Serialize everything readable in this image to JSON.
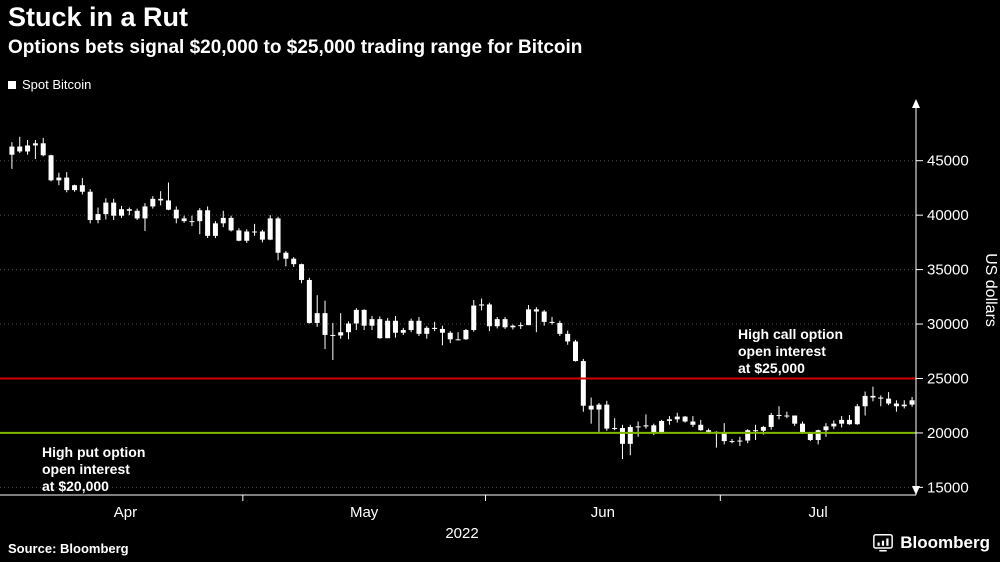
{
  "footer": {
    "source": "Source: Bloomberg",
    "brand": "Bloomberg"
  },
  "colors": {
    "background": "#000000",
    "text": "#ffffff",
    "call_line": "#d40000",
    "put_line": "#7fb800",
    "grid": "#4f4f4f"
  },
  "chart_data": {
    "type": "candlestick",
    "title": "Stuck in a Rut",
    "subtitle": "Options bets signal $20,000 to $25,000 trading range for Bitcoin",
    "series_name": "Spot Bitcoin",
    "xlabel": "2022",
    "ylabel": "US dollars",
    "ylim": [
      14300,
      50300
    ],
    "yticks": [
      15000,
      20000,
      25000,
      30000,
      35000,
      40000,
      45000
    ],
    "grid_color": "#4f4f4f",
    "candle_color": "#ffffff",
    "months": [
      {
        "label": "Apr",
        "days": 30
      },
      {
        "label": "May",
        "days": 31
      },
      {
        "label": "Jun",
        "days": 30
      },
      {
        "label": "Jul",
        "days": 25
      }
    ],
    "hlines": [
      {
        "value": 25000,
        "color": "#d40000",
        "label": "High call option\nopen interest\nat $25,000"
      },
      {
        "value": 20000,
        "color": "#7fb800",
        "label": "High put option\nopen interest\nat $20,000"
      }
    ],
    "candles": [
      [
        45550,
        46700,
        44250,
        46300
      ],
      [
        46300,
        47200,
        45700,
        45850
      ],
      [
        45850,
        46900,
        45550,
        46400
      ],
      [
        46400,
        46900,
        45150,
        46600
      ],
      [
        46600,
        47100,
        45400,
        45500
      ],
      [
        45500,
        45550,
        43100,
        43200
      ],
      [
        43200,
        43900,
        42750,
        43450
      ],
      [
        43450,
        43950,
        42100,
        42300
      ],
      [
        42300,
        42800,
        42150,
        42750
      ],
      [
        42750,
        43400,
        41900,
        42150
      ],
      [
        42150,
        42400,
        39250,
        39550
      ],
      [
        39550,
        40700,
        39250,
        40100
      ],
      [
        40100,
        41550,
        39600,
        41150
      ],
      [
        41150,
        41500,
        39550,
        39950
      ],
      [
        39950,
        40850,
        39750,
        40550
      ],
      [
        40550,
        40700,
        40000,
        40400
      ],
      [
        40400,
        40600,
        39550,
        39700
      ],
      [
        39700,
        41100,
        38550,
        40800
      ],
      [
        40800,
        41750,
        40600,
        41500
      ],
      [
        41500,
        42200,
        40900,
        41350
      ],
      [
        41350,
        43000,
        40450,
        40500
      ],
      [
        40500,
        40800,
        39250,
        39700
      ],
      [
        39700,
        39950,
        39300,
        39450
      ],
      [
        39450,
        39950,
        39000,
        39450
      ],
      [
        39450,
        40650,
        38250,
        40450
      ],
      [
        40450,
        40800,
        37900,
        38100
      ],
      [
        38100,
        39450,
        37900,
        39250
      ],
      [
        39250,
        40400,
        38900,
        39750
      ],
      [
        39750,
        39950,
        38500,
        38600
      ],
      [
        38600,
        38800,
        37600,
        37650
      ],
      [
        37650,
        38700,
        37450,
        38500
      ],
      [
        38500,
        39200,
        38100,
        38500
      ],
      [
        38500,
        38650,
        37500,
        37750
      ],
      [
        37750,
        40000,
        37700,
        39700
      ],
      [
        39700,
        39850,
        35850,
        36550
      ],
      [
        36550,
        36700,
        35300,
        36000
      ],
      [
        36000,
        36150,
        35250,
        35500
      ],
      [
        35500,
        35550,
        33750,
        34050
      ],
      [
        34050,
        34250,
        30050,
        30100
      ],
      [
        30100,
        32650,
        29750,
        31000
      ],
      [
        31000,
        32150,
        27700,
        29000
      ],
      [
        29000,
        30100,
        26700,
        28950
      ],
      [
        28950,
        31000,
        28650,
        29250
      ],
      [
        29250,
        30250,
        28600,
        30050
      ],
      [
        30050,
        31450,
        29450,
        31300
      ],
      [
        31300,
        31350,
        29450,
        29850
      ],
      [
        29850,
        30750,
        29450,
        30450
      ],
      [
        30450,
        30700,
        28650,
        28700
      ],
      [
        28700,
        30550,
        28700,
        30300
      ],
      [
        30300,
        30750,
        28750,
        29200
      ],
      [
        29200,
        29650,
        29000,
        29450
      ],
      [
        29450,
        30500,
        29250,
        30300
      ],
      [
        30300,
        30650,
        28900,
        29100
      ],
      [
        29100,
        29800,
        28650,
        29650
      ],
      [
        29650,
        30200,
        29350,
        29550
      ],
      [
        29550,
        29850,
        28050,
        29200
      ],
      [
        29200,
        29350,
        28250,
        28600
      ],
      [
        28600,
        29250,
        28500,
        28600
      ],
      [
        28600,
        29550,
        28550,
        29450
      ],
      [
        29450,
        32200,
        29300,
        31700
      ],
      [
        31700,
        32350,
        31250,
        31800
      ],
      [
        31800,
        31950,
        29350,
        29800
      ],
      [
        29800,
        30650,
        29600,
        30450
      ],
      [
        30450,
        30650,
        29550,
        29700
      ],
      [
        29700,
        29950,
        29500,
        29850
      ],
      [
        29850,
        30150,
        29550,
        29900
      ],
      [
        29900,
        31750,
        29900,
        31350
      ],
      [
        31350,
        31550,
        29250,
        31150
      ],
      [
        31150,
        31300,
        29850,
        30200
      ],
      [
        30200,
        30650,
        29950,
        30100
      ],
      [
        30100,
        30300,
        28900,
        29100
      ],
      [
        29100,
        29400,
        28100,
        28400
      ],
      [
        28400,
        28550,
        26550,
        26600
      ],
      [
        26600,
        26800,
        21950,
        22500
      ],
      [
        22500,
        23250,
        20850,
        22150
      ],
      [
        22150,
        22750,
        20100,
        22600
      ],
      [
        22600,
        22950,
        20200,
        20400
      ],
      [
        20400,
        21350,
        20250,
        20450
      ],
      [
        20450,
        20750,
        17600,
        19000
      ],
      [
        19000,
        20750,
        17950,
        20550
      ],
      [
        20550,
        21050,
        19650,
        20600
      ],
      [
        20600,
        21700,
        20400,
        20700
      ],
      [
        20700,
        20850,
        19800,
        19950
      ],
      [
        19950,
        21200,
        19900,
        21100
      ],
      [
        21100,
        21550,
        20750,
        21250
      ],
      [
        21250,
        21850,
        20950,
        21500
      ],
      [
        21500,
        21550,
        20950,
        21050
      ],
      [
        21050,
        21550,
        20550,
        20750
      ],
      [
        20750,
        21200,
        20200,
        20250
      ],
      [
        20250,
        20400,
        19900,
        20100
      ],
      [
        20100,
        20150,
        18650,
        19950
      ],
      [
        19950,
        20900,
        18950,
        19250
      ],
      [
        19250,
        19450,
        19050,
        19250
      ],
      [
        19250,
        19650,
        18800,
        19300
      ],
      [
        19300,
        20350,
        19050,
        20250
      ],
      [
        20250,
        20750,
        19350,
        20200
      ],
      [
        20200,
        20650,
        19850,
        20550
      ],
      [
        20550,
        21850,
        20300,
        21650
      ],
      [
        21650,
        22450,
        21250,
        21600
      ],
      [
        21600,
        21950,
        21350,
        21600
      ],
      [
        21600,
        21600,
        20650,
        20850
      ],
      [
        20850,
        21050,
        19900,
        19950
      ],
      [
        19950,
        20050,
        19250,
        19350
      ],
      [
        19350,
        20300,
        18950,
        20250
      ],
      [
        20250,
        20900,
        19650,
        20600
      ],
      [
        20600,
        21150,
        20350,
        20850
      ],
      [
        20850,
        21550,
        20500,
        21200
      ],
      [
        21200,
        21650,
        20750,
        20800
      ],
      [
        20800,
        22650,
        20750,
        22450
      ],
      [
        22450,
        23800,
        21600,
        23400
      ],
      [
        23400,
        24250,
        22900,
        23250
      ],
      [
        23250,
        23450,
        22450,
        23150
      ],
      [
        23150,
        23750,
        22550,
        22700
      ],
      [
        22700,
        23000,
        21950,
        22450
      ],
      [
        22450,
        23000,
        22250,
        22600
      ],
      [
        22600,
        23300,
        22400,
        23000
      ]
    ]
  }
}
